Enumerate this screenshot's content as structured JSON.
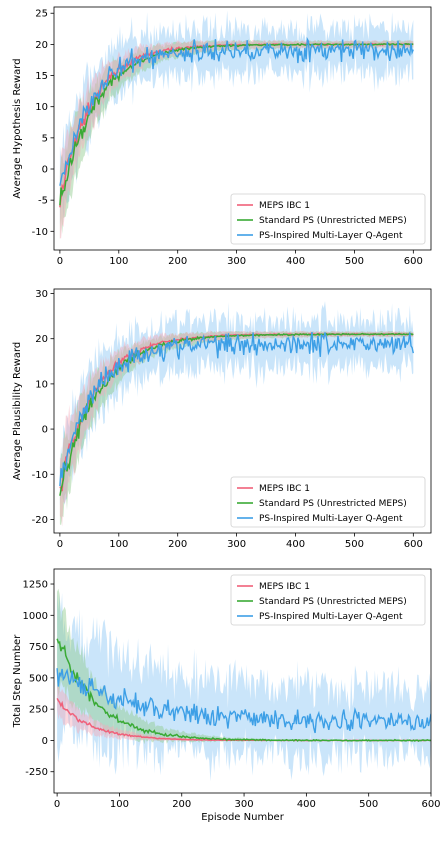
{
  "colors": {
    "meps": "#f0607a",
    "standard": "#3aaa35",
    "ps": "#3d9fe6",
    "ps_band": "#9fd0f5",
    "green_band": "#8fc98c",
    "pink_band": "#f5a9b8"
  },
  "chart_data": [
    {
      "type": "line",
      "ylabel": "Average Hypothesis Reward",
      "xlabel": "",
      "xlim": [
        -10,
        630
      ],
      "ylim": [
        -13,
        26
      ],
      "xticks": [
        0,
        100,
        200,
        300,
        400,
        500,
        600
      ],
      "yticks": [
        -10,
        -5,
        0,
        5,
        10,
        15,
        20,
        25
      ],
      "legend_position": "lower-right",
      "grid": false,
      "series": [
        {
          "name": "MEPS IBC 1",
          "color": "meps",
          "start": -5.5,
          "plateau": 20,
          "tau": 55,
          "band_start": 6,
          "band_end": 0.5,
          "noise": 1.5,
          "x_end": 600
        },
        {
          "name": "Standard PS (Unrestricted MEPS)",
          "color": "standard",
          "start": -6,
          "plateau": 20,
          "tau": 60,
          "band_start": 6,
          "band_end": 0.5,
          "noise": 1.5,
          "x_end": 600
        },
        {
          "name": "PS-Inspired Multi-Layer Q-Agent",
          "color": "ps",
          "start": -4,
          "plateau": 19,
          "tau": 50,
          "band_start": 6,
          "band_end": 3.5,
          "noise": 1.2,
          "x_end": 600
        }
      ]
    },
    {
      "type": "line",
      "ylabel": "Average Plausibility Reward",
      "xlabel": "",
      "xlim": [
        -10,
        630
      ],
      "ylim": [
        -23,
        31
      ],
      "xticks": [
        0,
        100,
        200,
        300,
        400,
        500,
        600
      ],
      "yticks": [
        -20,
        -10,
        0,
        10,
        20,
        30
      ],
      "legend_position": "lower-right",
      "grid": false,
      "series": [
        {
          "name": "MEPS IBC 1",
          "color": "meps",
          "start": -13,
          "plateau": 21,
          "tau": 60,
          "band_start": 8,
          "band_end": 0.5,
          "noise": 2,
          "x_end": 600
        },
        {
          "name": "Standard PS (Unrestricted MEPS)",
          "color": "standard",
          "start": -14,
          "plateau": 21,
          "tau": 65,
          "band_start": 8,
          "band_end": 0.5,
          "noise": 2,
          "x_end": 600
        },
        {
          "name": "PS-Inspired Multi-Layer Q-Agent",
          "color": "ps",
          "start": -12,
          "plateau": 19,
          "tau": 55,
          "band_start": 8,
          "band_end": 5,
          "noise": 1.8,
          "x_end": 600
        }
      ]
    },
    {
      "type": "line",
      "ylabel": "Total Step Number",
      "xlabel": "Episode Number",
      "xlim": [
        -5,
        600
      ],
      "ylim": [
        -420,
        1370
      ],
      "xticks": [
        0,
        100,
        200,
        300,
        400,
        500,
        600
      ],
      "yticks": [
        -250,
        0,
        250,
        500,
        750,
        1000,
        1250
      ],
      "legend_position": "top-right",
      "grid": false,
      "series": [
        {
          "name": "MEPS IBC 1",
          "color": "meps",
          "start": 320,
          "plateau": 0,
          "tau": 55,
          "band_start": 120,
          "band_end": 0,
          "noise": 20,
          "x_end": 600
        },
        {
          "name": "Standard PS (Unrestricted MEPS)",
          "color": "standard",
          "start": 850,
          "plateau": 0,
          "tau": 60,
          "band_start": 350,
          "band_end": 0,
          "noise": 60,
          "x_end": 600
        },
        {
          "name": "PS-Inspired Multi-Layer Q-Agent",
          "color": "ps",
          "start": 550,
          "plateau": 150,
          "tau": 120,
          "band_start": 450,
          "band_end": 250,
          "noise": 60,
          "x_end": 600
        }
      ]
    }
  ]
}
